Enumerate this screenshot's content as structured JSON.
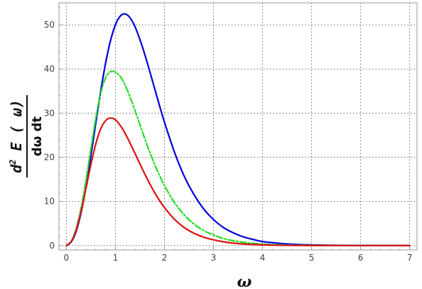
{
  "chart_data": {
    "type": "line",
    "title": "",
    "xlabel": "ω",
    "ylabel": {
      "numerator": "d² E ( ω)",
      "numerator_d": "d",
      "numerator_sup": "2",
      "numerator_rest": " E ( ω)",
      "denominator": "dω dt"
    },
    "xlim": [
      -0.15,
      7.15
    ],
    "ylim": [
      -1,
      55
    ],
    "xticks": [
      0,
      1,
      2,
      3,
      4,
      5,
      6,
      7
    ],
    "yticks": [
      0,
      10,
      20,
      30,
      40,
      50
    ],
    "grid": true,
    "legend": "none",
    "x": [
      0,
      0.1,
      0.2,
      0.3,
      0.4,
      0.5,
      0.6,
      0.7,
      0.8,
      0.9,
      1.0,
      1.1,
      1.2,
      1.3,
      1.4,
      1.5,
      1.6,
      1.7,
      1.8,
      1.9,
      2.0,
      2.2,
      2.4,
      2.6,
      2.8,
      3.0,
      3.2,
      3.4,
      3.6,
      3.8,
      4.0,
      4.25,
      4.5,
      4.75,
      5.0,
      5.5,
      6.0,
      6.5,
      7.0
    ],
    "series": [
      {
        "color": "#0000dd",
        "style": "solid",
        "values": [
          0,
          0.8,
          3.2,
          7.4,
          13.2,
          20.2,
          27.7,
          34.9,
          41.3,
          46.4,
          50.0,
          52.0,
          52.5,
          51.6,
          49.6,
          46.7,
          43.3,
          39.5,
          35.6,
          31.7,
          28.0,
          21.3,
          15.8,
          11.6,
          8.3,
          5.9,
          4.1,
          2.9,
          2.0,
          1.4,
          0.9,
          0.6,
          0.35,
          0.22,
          0.14,
          0.05,
          0.02,
          0.01,
          0
        ]
      },
      {
        "color": "#22dd22",
        "style": "dashdot",
        "values": [
          0,
          1.0,
          3.8,
          8.5,
          14.8,
          21.9,
          28.8,
          34.4,
          38.0,
          39.4,
          39.3,
          38.3,
          36.3,
          33.6,
          30.6,
          27.4,
          24.2,
          21.2,
          18.4,
          15.9,
          13.6,
          9.8,
          7.0,
          4.9,
          3.4,
          2.4,
          1.6,
          1.1,
          0.75,
          0.5,
          0.33,
          0.2,
          0.12,
          0.07,
          0.04,
          0.01,
          0,
          0,
          0
        ]
      },
      {
        "color": "#dd1111",
        "style": "solid",
        "values": [
          0,
          0.9,
          3.5,
          7.7,
          12.9,
          18.3,
          23.0,
          26.4,
          28.3,
          28.9,
          28.5,
          27.2,
          25.4,
          23.2,
          20.9,
          18.5,
          16.2,
          14.0,
          12.0,
          10.2,
          8.6,
          6.0,
          4.1,
          2.8,
          1.9,
          1.3,
          0.85,
          0.55,
          0.35,
          0.23,
          0.15,
          0.08,
          0.04,
          0.02,
          0.01,
          0,
          0,
          0,
          0
        ]
      }
    ]
  },
  "colors": {
    "frame": "#999999",
    "grid": "#666666",
    "tick_text": "#444444"
  }
}
